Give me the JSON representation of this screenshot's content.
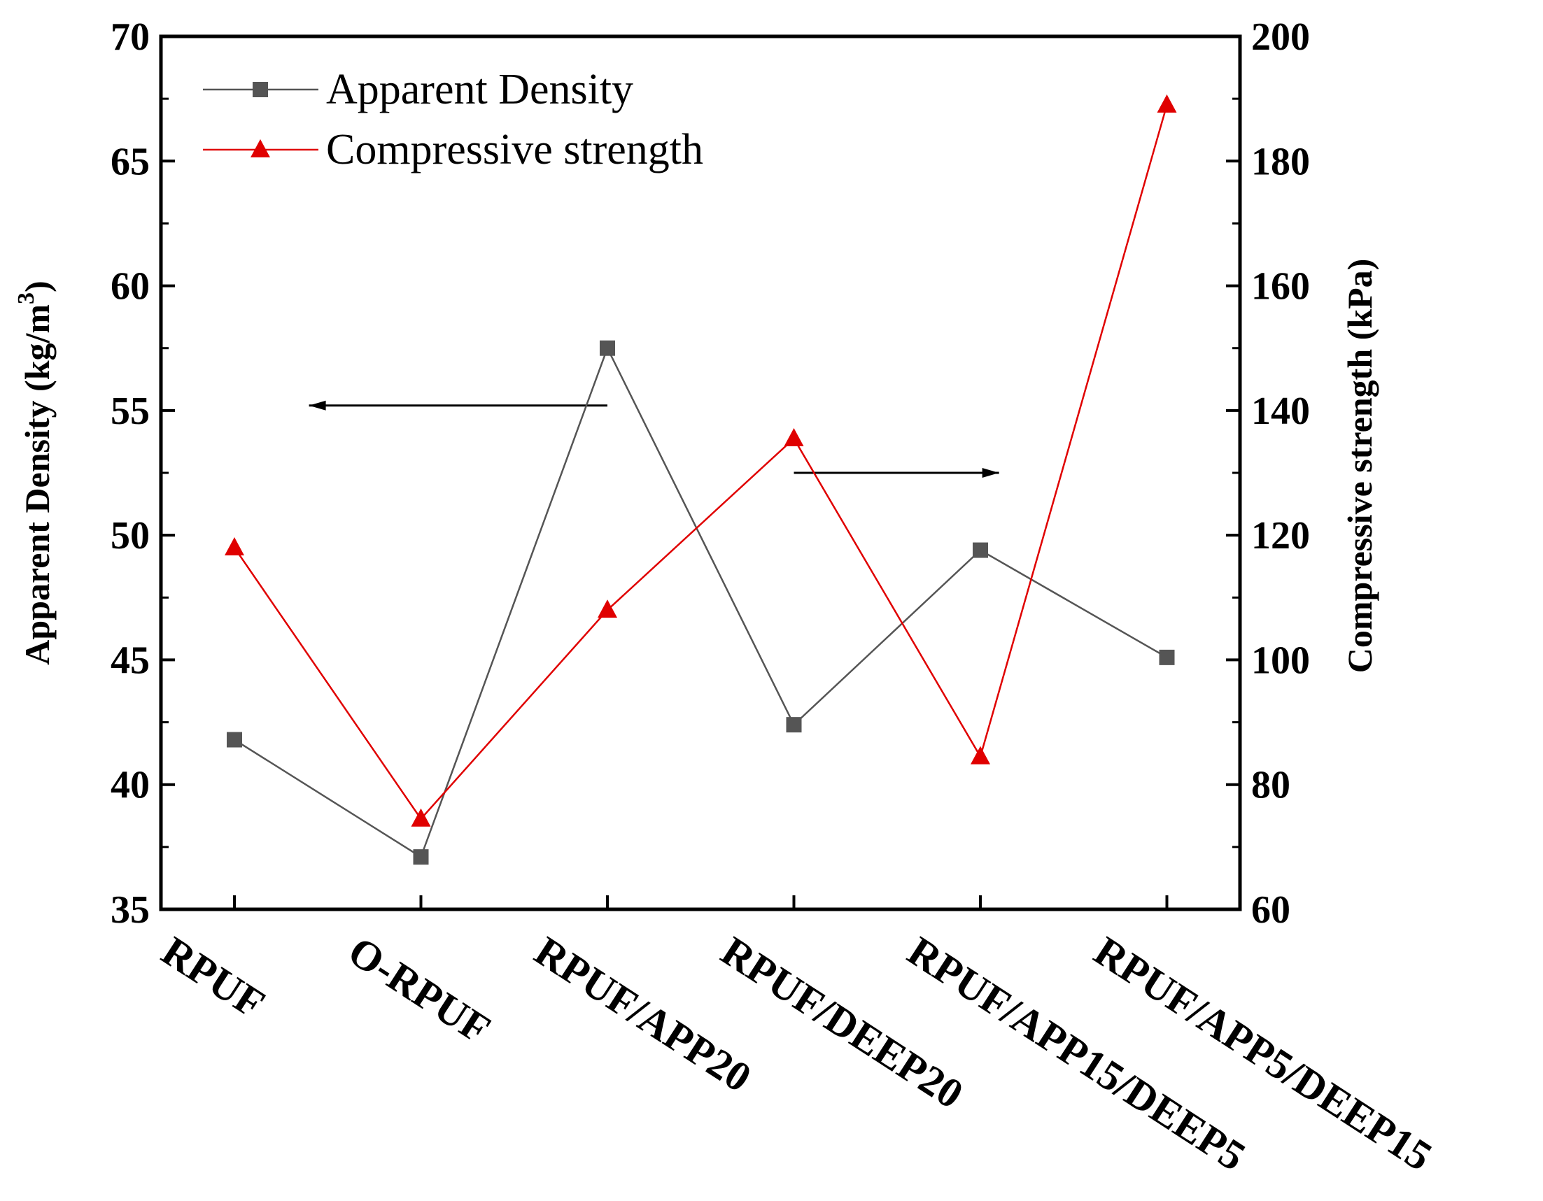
{
  "chart_data": {
    "type": "line",
    "categories": [
      "RPUF",
      "O-RPUF",
      "RPUF/APP20",
      "RPUF/DEEP20",
      "RPUF/APP15/DEEP5",
      "RPUF/APP5/DEEP15"
    ],
    "y_left": {
      "label_main": "Apparent Density (kg/m",
      "label_sup": "3",
      "label_close": ")",
      "ylim": [
        35,
        70
      ],
      "ticks": [
        35,
        40,
        45,
        50,
        55,
        60,
        65,
        70
      ]
    },
    "y_right": {
      "label": "Compressive strength (kPa)",
      "ylim": [
        60,
        200
      ],
      "ticks": [
        60,
        80,
        100,
        120,
        140,
        160,
        180,
        200
      ]
    },
    "series": [
      {
        "name": "Apparent Density",
        "axis": "left",
        "color": "#555555",
        "marker": "square",
        "values": [
          41.8,
          37.1,
          57.5,
          42.4,
          49.4,
          45.1
        ]
      },
      {
        "name": "Compressive strength",
        "axis": "right",
        "color": "#e00000",
        "marker": "triangle",
        "values": [
          118,
          74.5,
          108,
          135.5,
          84.5,
          189
        ]
      }
    ],
    "annotations": [
      {
        "type": "arrow",
        "direction": "left",
        "points_to": "left-axis",
        "y_left": 55.2,
        "from_category": 2,
        "to_category": 0.4
      },
      {
        "type": "arrow",
        "direction": "right",
        "points_to": "right-axis",
        "y_right": 130,
        "from_category": 3,
        "to_category": 4.1
      }
    ],
    "legend": "top-left",
    "grid": false
  }
}
